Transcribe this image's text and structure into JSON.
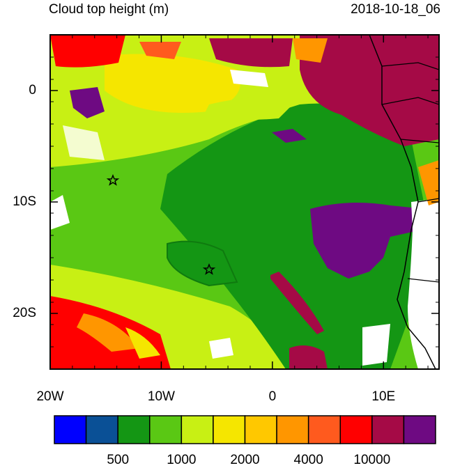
{
  "title": "Cloud top height (m)",
  "date": "2018-10-18_06",
  "map": {
    "lon_range": [
      -20,
      15
    ],
    "lat_range": [
      -25,
      5
    ],
    "lon_ticks": [
      {
        "value": -20,
        "label": "20W"
      },
      {
        "value": -10,
        "label": "10W"
      },
      0,
      {
        "value": 10,
        "label": "10E"
      }
    ],
    "lat_ticks": [
      0,
      {
        "value": -10,
        "label": "10S"
      },
      {
        "value": -20,
        "label": "20S"
      }
    ]
  },
  "colorbar": {
    "colors": [
      "#0000ff",
      "#0a5096",
      "#149614",
      "#5ac814",
      "#c8f014",
      "#f5e600",
      "#ffc800",
      "#ff9600",
      "#ff5a1e",
      "#ff0000",
      "#a50a46",
      "#6e0a82"
    ],
    "labels": [
      null,
      500,
      null,
      1000,
      null,
      2000,
      null,
      4000,
      null,
      10000,
      null
    ]
  }
}
